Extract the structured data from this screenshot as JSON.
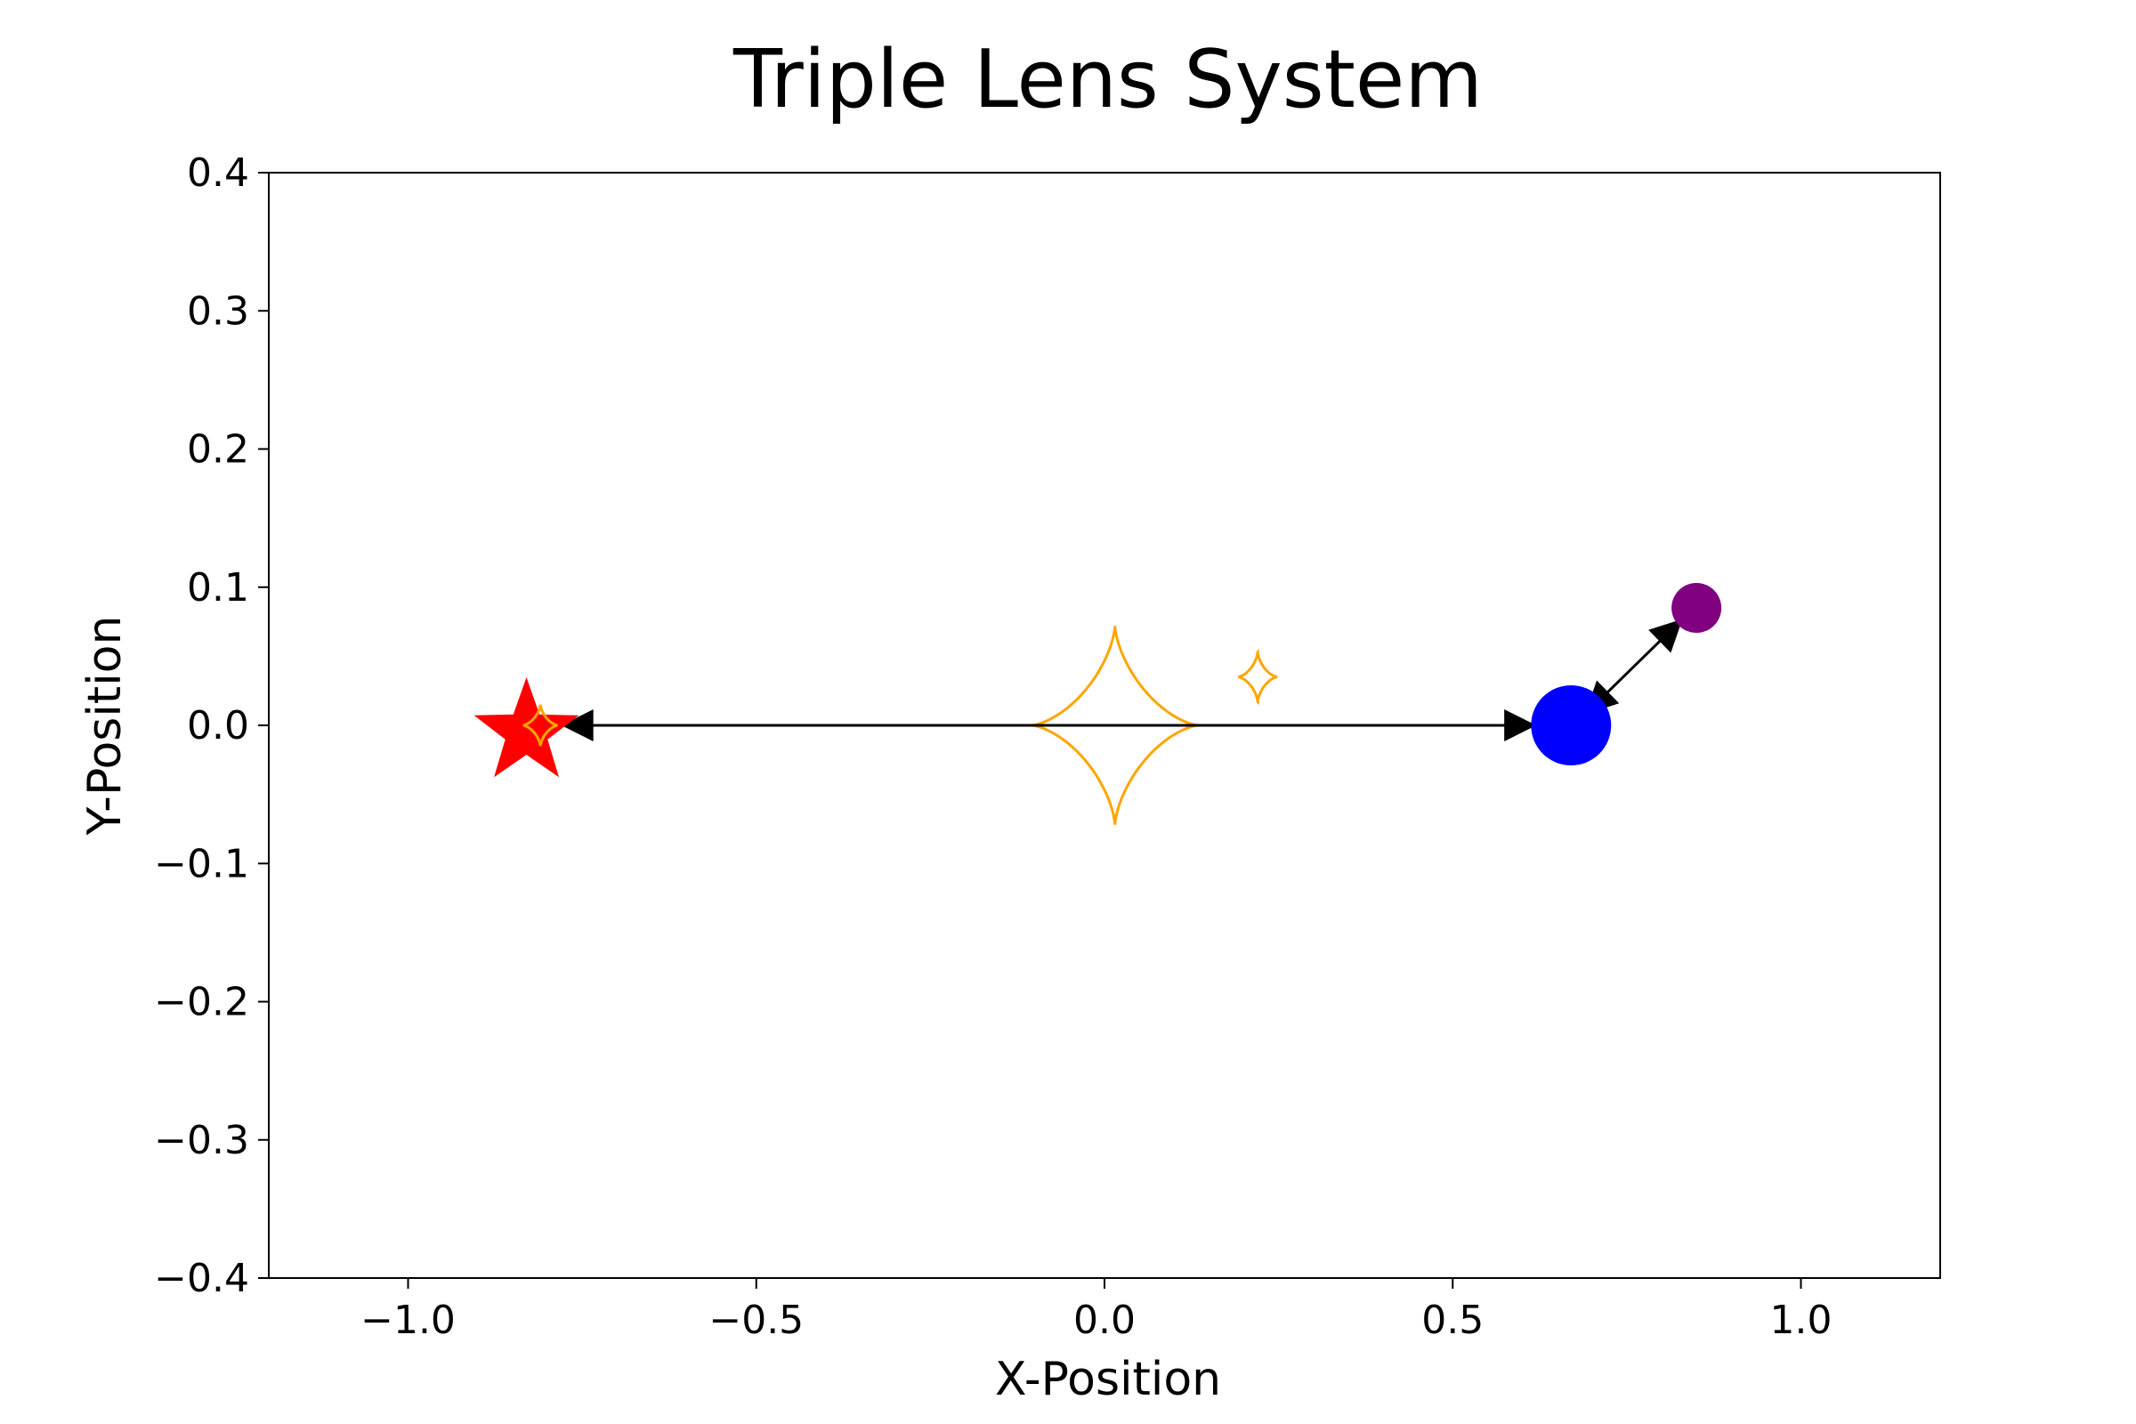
{
  "chart_data": {
    "type": "scatter",
    "title": "Triple Lens System",
    "xlabel": "X-Position",
    "ylabel": "Y-Position",
    "xlim": [
      -1.2,
      1.2
    ],
    "ylim": [
      -0.4,
      0.4
    ],
    "xticks": [
      -1.0,
      -0.5,
      0.0,
      0.5,
      1.0
    ],
    "xtick_labels": [
      "−1.0",
      "−0.5",
      "0.0",
      "0.5",
      "1.0"
    ],
    "yticks": [
      0.4,
      0.3,
      0.2,
      0.1,
      0.0,
      -0.1,
      -0.2,
      -0.3,
      -0.4
    ],
    "ytick_labels": [
      "0.4",
      "0.3",
      "0.2",
      "0.1",
      "0.0",
      "−0.1",
      "−0.2",
      "−0.3",
      "−0.4"
    ],
    "grid": false,
    "lenses": [
      {
        "marker": "star",
        "x": -0.83,
        "y": 0.0,
        "color": "#ff0000"
      },
      {
        "marker": "circle",
        "x": 0.67,
        "y": 0.0,
        "color": "#0000ff"
      },
      {
        "marker": "circle",
        "x": 0.85,
        "y": 0.085,
        "color": "#800080"
      }
    ],
    "arrows": [
      {
        "x1": -0.78,
        "y1": 0.0,
        "x2": 0.62,
        "y2": 0.0,
        "double": true
      },
      {
        "x1": 0.69,
        "y1": 0.008,
        "x2": 0.83,
        "y2": 0.077,
        "double": true
      }
    ],
    "caustics": [
      {
        "cx": 0.015,
        "cy": 0.0,
        "rx": 0.12,
        "ry": 0.072,
        "color": "#ffa500"
      },
      {
        "cx": 0.22,
        "cy": 0.035,
        "rx": 0.028,
        "ry": 0.018,
        "color": "#ffa500"
      },
      {
        "cx": -0.81,
        "cy": 0.0,
        "rx": 0.025,
        "ry": 0.015,
        "color": "#ffa500"
      }
    ]
  }
}
